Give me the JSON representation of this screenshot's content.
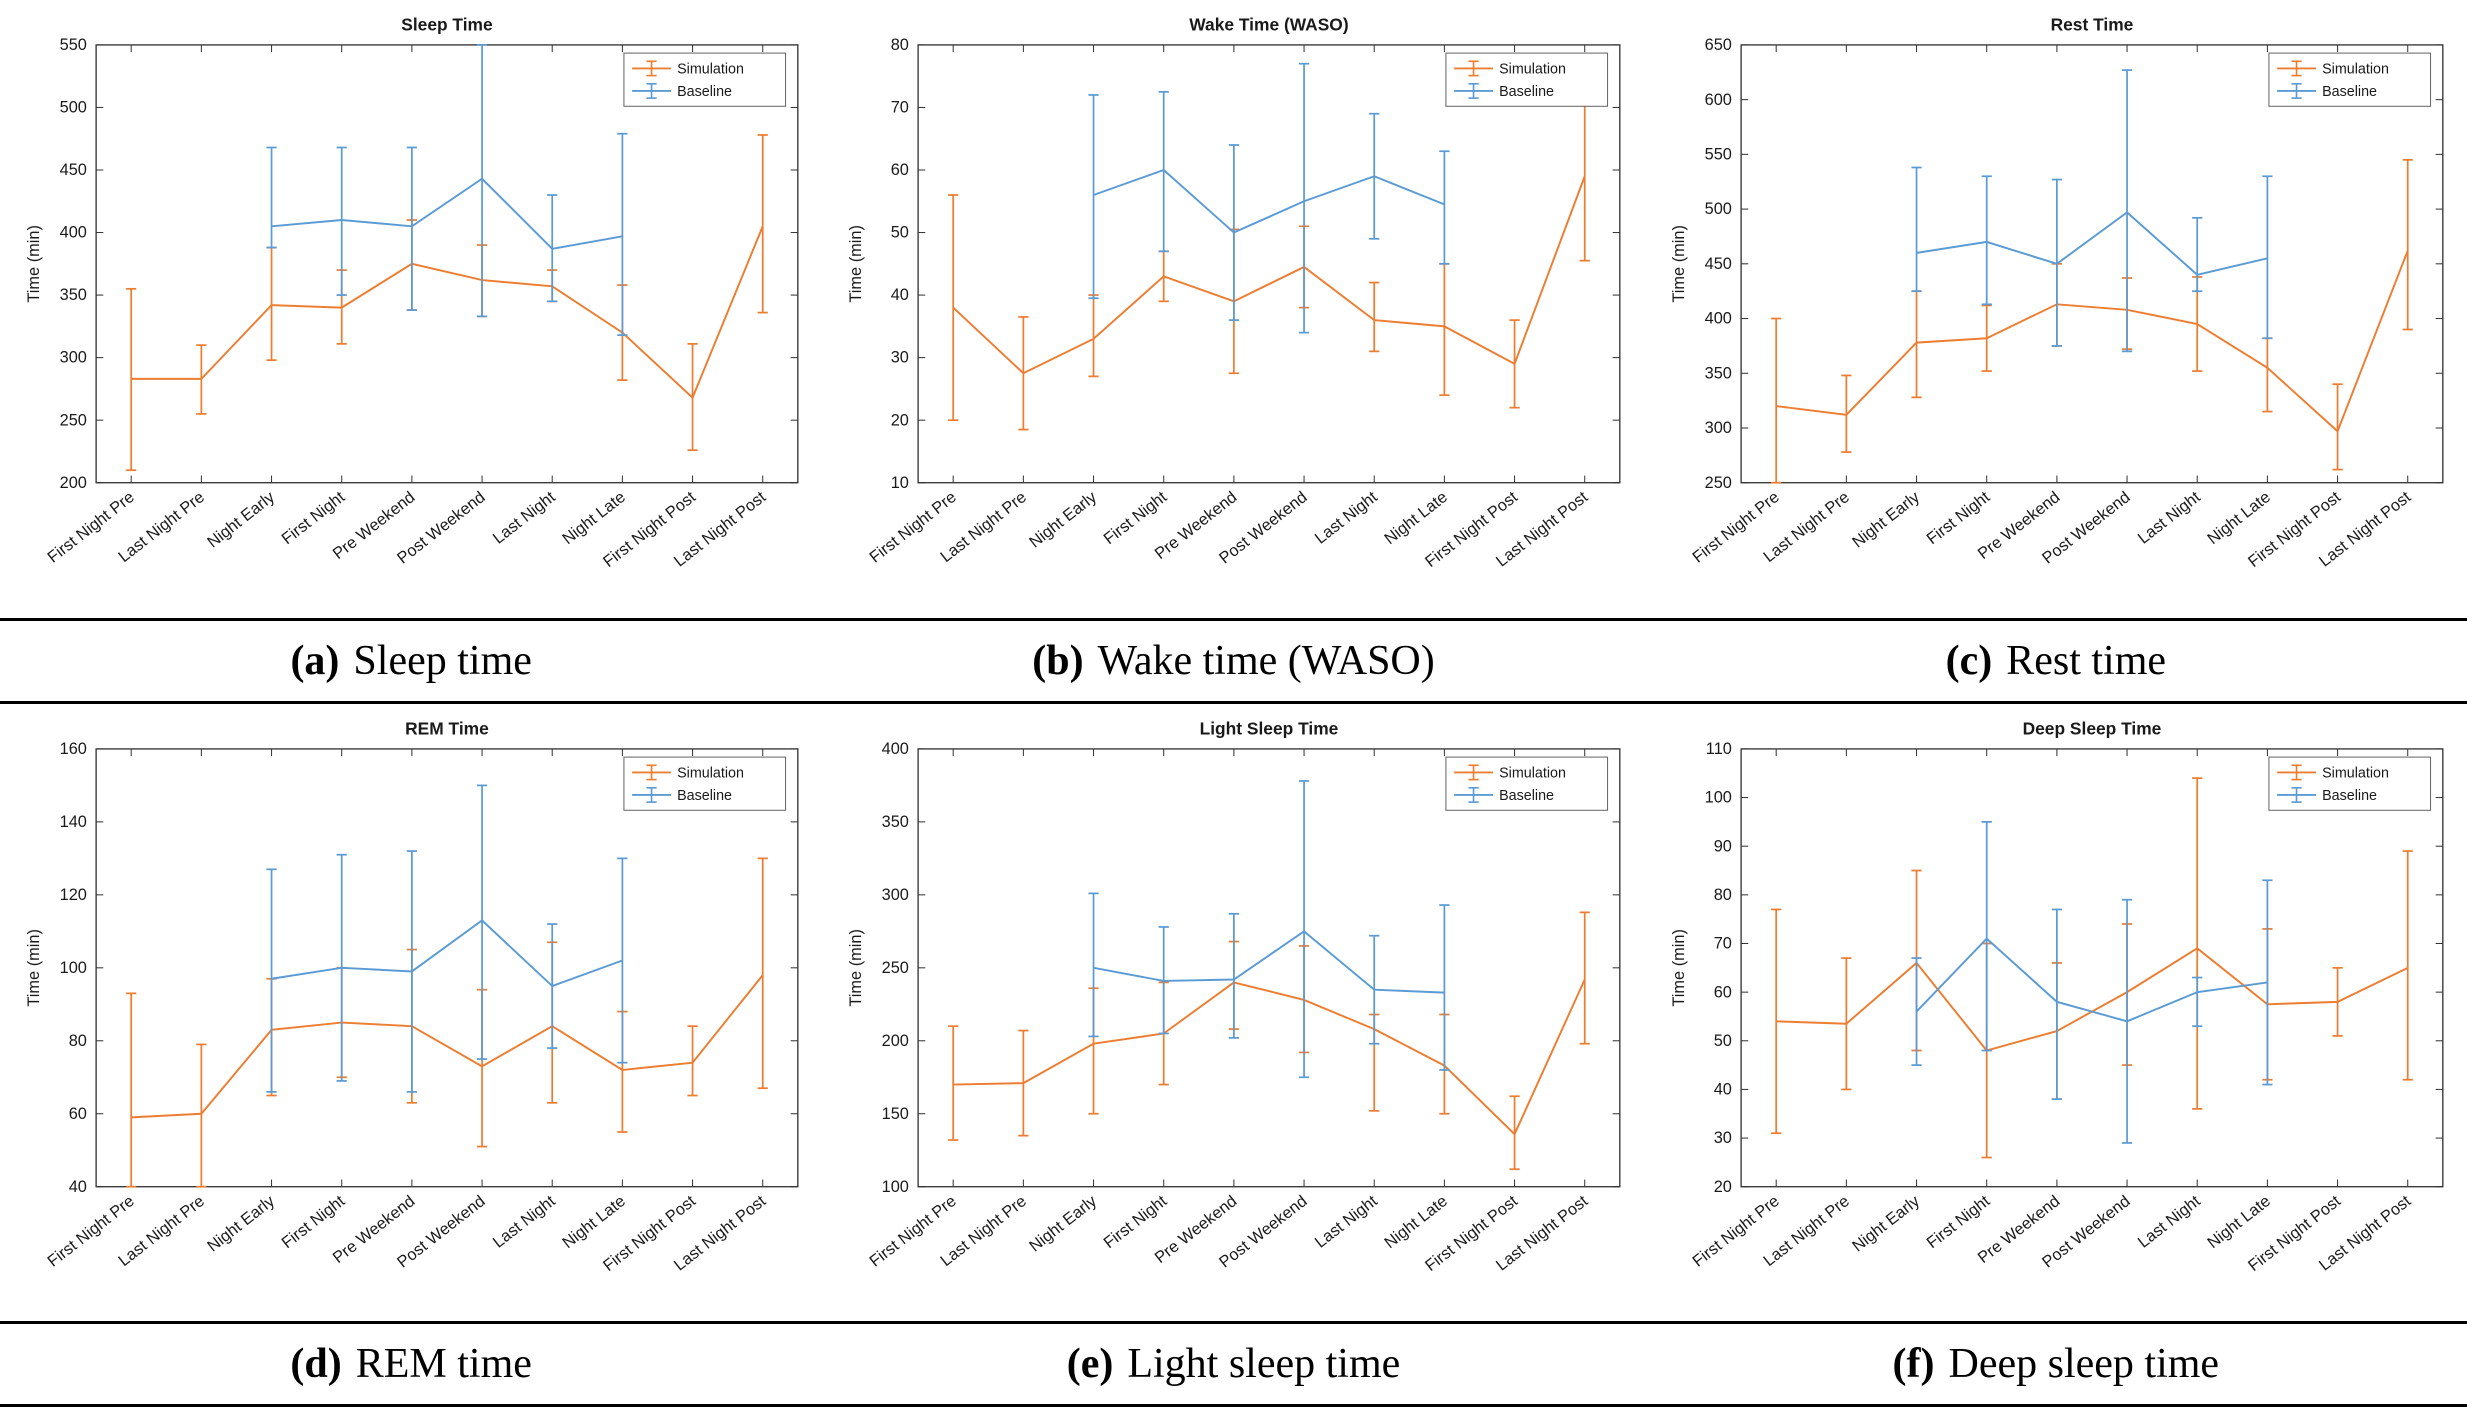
{
  "colors": {
    "simulation": "#ED7D31",
    "baseline": "#5B9BD5",
    "axis": "#333333",
    "text": "#1a1a1a"
  },
  "chart_data": {
    "type": "line",
    "note": "Errorbar line plots, 2 series each; Baseline series only spans Night Early through Night Late",
    "categories": [
      "First Night Pre",
      "Last Night Pre",
      "Night Early",
      "First Night",
      "Pre Weekend",
      "Post Weekend",
      "Last Night",
      "Night Late",
      "First Night Post",
      "Last Night Post"
    ],
    "charts": [
      {
        "id": "a",
        "title": "Sleep Time",
        "caption_label": "(a)",
        "caption_text": "Sleep time",
        "ylabel": "Time (min)",
        "ylim": [
          200,
          550
        ],
        "ytick_step": 50,
        "legend": [
          "Simulation",
          "Baseline"
        ],
        "series": [
          {
            "name": "Simulation",
            "color_key": "simulation",
            "values": [
              283,
              283,
              342,
              340,
              375,
              362,
              357,
              320,
              268,
              405
            ],
            "err_lo": [
              210,
              255,
              298,
              311,
              338,
              333,
              345,
              282,
              226,
              336
            ],
            "err_hi": [
              355,
              310,
              388,
              370,
              410,
              390,
              370,
              358,
              311,
              478
            ]
          },
          {
            "name": "Baseline",
            "color_key": "baseline",
            "values": [
              null,
              null,
              405,
              410,
              405,
              443,
              387,
              397,
              null,
              null
            ],
            "err_lo": [
              null,
              null,
              388,
              350,
              338,
              333,
              345,
              318,
              null,
              null
            ],
            "err_hi": [
              null,
              null,
              468,
              468,
              468,
              557,
              430,
              479,
              null,
              null
            ]
          }
        ]
      },
      {
        "id": "b",
        "title": "Wake Time (WASO)",
        "caption_label": "(b)",
        "caption_text": "Wake time (WASO)",
        "ylabel": "Time (min)",
        "ylim": [
          10,
          80
        ],
        "ytick_step": 10,
        "legend": [
          "Simulation",
          "Baseline"
        ],
        "series": [
          {
            "name": "Simulation",
            "color_key": "simulation",
            "values": [
              38,
              27.5,
              33,
              43,
              39,
              44.5,
              36,
              35,
              29,
              59
            ],
            "err_lo": [
              20,
              18.5,
              27,
              39,
              27.5,
              38,
              31,
              24,
              22,
              45.5
            ],
            "err_hi": [
              56,
              36.5,
              40,
              47,
              50.5,
              51,
              42,
              45,
              36,
              72.5
            ]
          },
          {
            "name": "Baseline",
            "color_key": "baseline",
            "values": [
              null,
              null,
              56,
              60,
              50,
              55,
              59,
              54.5,
              null,
              null
            ],
            "err_lo": [
              null,
              null,
              39.5,
              47,
              36,
              34,
              49,
              45,
              null,
              null
            ],
            "err_hi": [
              null,
              null,
              72,
              72.5,
              64,
              77,
              69,
              63,
              null,
              null
            ]
          }
        ]
      },
      {
        "id": "c",
        "title": "Rest Time",
        "caption_label": "(c)",
        "caption_text": "Rest time",
        "ylabel": "Time (min)",
        "ylim": [
          250,
          650
        ],
        "ytick_step": 50,
        "legend": [
          "Simulation",
          "Baseline"
        ],
        "series": [
          {
            "name": "Simulation",
            "color_key": "simulation",
            "values": [
              320,
              312,
              378,
              382,
              413,
              408,
              395,
              355,
              297,
              462
            ],
            "err_lo": [
              250,
              278,
              328,
              352,
              375,
              372,
              352,
              315,
              262,
              390
            ],
            "err_hi": [
              400,
              348,
              425,
              412,
              450,
              437,
              438,
              382,
              340,
              545
            ]
          },
          {
            "name": "Baseline",
            "color_key": "baseline",
            "values": [
              null,
              null,
              460,
              470,
              450,
              497,
              440,
              455,
              null,
              null
            ],
            "err_lo": [
              null,
              null,
              425,
              413,
              375,
              370,
              425,
              382,
              null,
              null
            ],
            "err_hi": [
              null,
              null,
              538,
              530,
              527,
              627,
              492,
              530,
              null,
              null
            ]
          }
        ]
      },
      {
        "id": "d",
        "title": "REM Time",
        "caption_label": "(d)",
        "caption_text": "REM time",
        "ylabel": "Time (min)",
        "ylim": [
          40,
          160
        ],
        "ytick_step": 20,
        "legend": [
          "Simulation",
          "Baseline"
        ],
        "series": [
          {
            "name": "Simulation",
            "color_key": "simulation",
            "values": [
              59,
              60,
              83,
              85,
              84,
              73,
              84,
              72,
              74,
              98
            ],
            "err_lo": [
              40,
              40,
              65,
              70,
              63,
              51,
              63,
              55,
              65,
              67
            ],
            "err_hi": [
              93,
              79,
              97,
              100,
              105,
              94,
              107,
              88,
              84,
              130
            ]
          },
          {
            "name": "Baseline",
            "color_key": "baseline",
            "values": [
              null,
              null,
              97,
              100,
              99,
              113,
              95,
              102,
              null,
              null
            ],
            "err_lo": [
              null,
              null,
              66,
              69,
              66,
              75,
              78,
              74,
              null,
              null
            ],
            "err_hi": [
              null,
              null,
              127,
              131,
              132,
              150,
              112,
              130,
              null,
              null
            ]
          }
        ]
      },
      {
        "id": "e",
        "title": "Light Sleep Time",
        "caption_label": "(e)",
        "caption_text": "Light sleep time",
        "ylabel": "Time (min)",
        "ylim": [
          100,
          400
        ],
        "ytick_step": 50,
        "legend": [
          "Simulation",
          "Baseline"
        ],
        "series": [
          {
            "name": "Simulation",
            "color_key": "simulation",
            "values": [
              170,
              171,
              198,
              205,
              240,
              228,
              208,
              183,
              136,
              242
            ],
            "err_lo": [
              132,
              135,
              150,
              170,
              208,
              192,
              152,
              150,
              112,
              198
            ],
            "err_hi": [
              210,
              207,
              236,
              240,
              268,
              265,
              218,
              218,
              162,
              288
            ]
          },
          {
            "name": "Baseline",
            "color_key": "baseline",
            "values": [
              null,
              null,
              250,
              241,
              242,
              275,
              235,
              233,
              null,
              null
            ],
            "err_lo": [
              null,
              null,
              203,
              205,
              202,
              175,
              198,
              180,
              null,
              null
            ],
            "err_hi": [
              null,
              null,
              301,
              278,
              287,
              378,
              272,
              293,
              null,
              null
            ]
          }
        ]
      },
      {
        "id": "f",
        "title": "Deep Sleep Time",
        "caption_label": "(f)",
        "caption_text": "Deep sleep time",
        "ylabel": "Time (min)",
        "ylim": [
          20,
          110
        ],
        "ytick_step": 10,
        "legend": [
          "Simulation",
          "Baseline"
        ],
        "series": [
          {
            "name": "Simulation",
            "color_key": "simulation",
            "values": [
              54,
              53.5,
              66,
              48,
              52,
              60,
              69,
              57.5,
              58,
              65
            ],
            "err_lo": [
              31,
              40,
              48,
              26,
              38,
              45,
              36,
              42,
              51,
              42
            ],
            "err_hi": [
              77,
              67,
              85,
              70,
              66,
              74,
              104,
              73,
              65,
              89
            ]
          },
          {
            "name": "Baseline",
            "color_key": "baseline",
            "values": [
              null,
              null,
              56,
              71,
              58,
              54,
              60,
              62,
              null,
              null
            ],
            "err_lo": [
              null,
              null,
              45,
              48,
              38,
              29,
              53,
              41,
              null,
              null
            ],
            "err_hi": [
              null,
              null,
              67,
              95,
              77,
              79,
              63,
              83,
              null,
              null
            ]
          }
        ]
      }
    ]
  }
}
